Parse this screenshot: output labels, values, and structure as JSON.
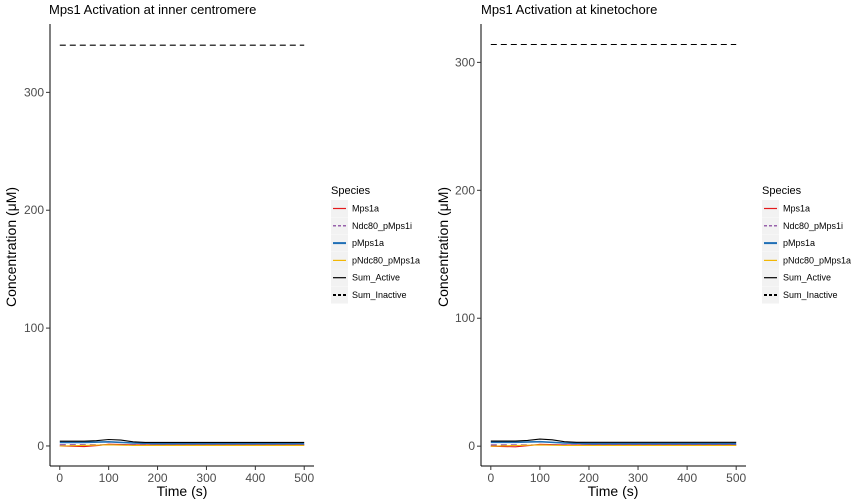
{
  "chart_data": [
    {
      "type": "line",
      "title": "Mps1 Activation at inner centromere",
      "xlabel": "Time (s)",
      "ylabel": "Concentration (μM)",
      "xlim": [
        -20,
        520
      ],
      "ylim": [
        -17,
        358
      ],
      "xticks": [
        0,
        100,
        200,
        300,
        400,
        500
      ],
      "yticks": [
        0,
        100,
        200,
        300
      ],
      "grid": false,
      "legend": {
        "title": "Species",
        "placement": "right"
      },
      "series": [
        {
          "name": "Mps1a",
          "color": "#E41A1C",
          "dash": "solid",
          "x": [
            0,
            50,
            80,
            100,
            150,
            200,
            300,
            400,
            500
          ],
          "y": [
            0,
            -0.5,
            0.5,
            1.5,
            1,
            1,
            1,
            1,
            1
          ]
        },
        {
          "name": "Ndc80_pMps1i",
          "color": "#7B3294",
          "dash": "dashed",
          "x": [
            0,
            100,
            200,
            300,
            400,
            500
          ],
          "y": [
            1,
            1,
            1,
            1,
            1,
            1
          ]
        },
        {
          "name": "pMps1a",
          "color": "#1F6FB5",
          "dash": "solid",
          "x": [
            0,
            50,
            100,
            150,
            200,
            300,
            400,
            500
          ],
          "y": [
            3,
            3,
            3.5,
            2.5,
            2,
            2,
            2,
            2
          ]
        },
        {
          "name": "pNdc80_pMps1a",
          "color": "#F2B705",
          "dash": "solid",
          "x": [
            0,
            50,
            100,
            150,
            200,
            300,
            400,
            500
          ],
          "y": [
            0,
            0.5,
            1,
            0.5,
            0.5,
            0.5,
            0.5,
            0.5
          ]
        },
        {
          "name": "Sum_Active",
          "color": "#000000",
          "dash": "solid",
          "x": [
            0,
            50,
            75,
            100,
            125,
            150,
            175,
            200,
            300,
            400,
            500
          ],
          "y": [
            4,
            4,
            4.5,
            5.5,
            5,
            3.5,
            3,
            3,
            3,
            3,
            3
          ]
        },
        {
          "name": "Sum_Inactive",
          "color": "#000000",
          "dash": "dashed",
          "x": [
            0,
            100,
            200,
            300,
            400,
            500
          ],
          "y": [
            340,
            340,
            340,
            340,
            340,
            340
          ]
        }
      ]
    },
    {
      "type": "line",
      "title": "Mps1 Activation at kinetochore",
      "xlabel": "Time (s)",
      "ylabel": "Concentration (μM)",
      "xlim": [
        -20,
        520
      ],
      "ylim": [
        -15.5,
        330
      ],
      "xticks": [
        0,
        100,
        200,
        300,
        400,
        500
      ],
      "yticks": [
        0,
        100,
        200,
        300
      ],
      "grid": false,
      "legend": {
        "title": "Species",
        "placement": "right"
      },
      "series": [
        {
          "name": "Mps1a",
          "color": "#E41A1C",
          "dash": "solid",
          "x": [
            0,
            50,
            80,
            100,
            150,
            200,
            300,
            400,
            500
          ],
          "y": [
            0,
            -0.5,
            0.5,
            1.5,
            1,
            1,
            1,
            1,
            1
          ]
        },
        {
          "name": "Ndc80_pMps1i",
          "color": "#7B3294",
          "dash": "dashed",
          "x": [
            0,
            100,
            200,
            300,
            400,
            500
          ],
          "y": [
            1,
            1,
            1,
            1,
            1,
            1
          ]
        },
        {
          "name": "pMps1a",
          "color": "#1F6FB5",
          "dash": "solid",
          "x": [
            0,
            50,
            100,
            150,
            200,
            300,
            400,
            500
          ],
          "y": [
            3,
            3,
            3.5,
            2.5,
            2,
            2,
            2,
            2
          ]
        },
        {
          "name": "pNdc80_pMps1a",
          "color": "#F2B705",
          "dash": "solid",
          "x": [
            0,
            50,
            100,
            150,
            200,
            300,
            400,
            500
          ],
          "y": [
            0,
            0.5,
            1,
            0.5,
            0.5,
            0.5,
            0.5,
            0.5
          ]
        },
        {
          "name": "Sum_Active",
          "color": "#000000",
          "dash": "solid",
          "x": [
            0,
            50,
            75,
            100,
            125,
            150,
            175,
            200,
            300,
            400,
            500
          ],
          "y": [
            4,
            4,
            4.5,
            5.5,
            5,
            3.5,
            3,
            3,
            3,
            3,
            3
          ]
        },
        {
          "name": "Sum_Inactive",
          "color": "#000000",
          "dash": "dashed",
          "x": [
            0,
            100,
            200,
            300,
            400,
            500
          ],
          "y": [
            314,
            314,
            314,
            314,
            314,
            314
          ]
        }
      ]
    }
  ]
}
